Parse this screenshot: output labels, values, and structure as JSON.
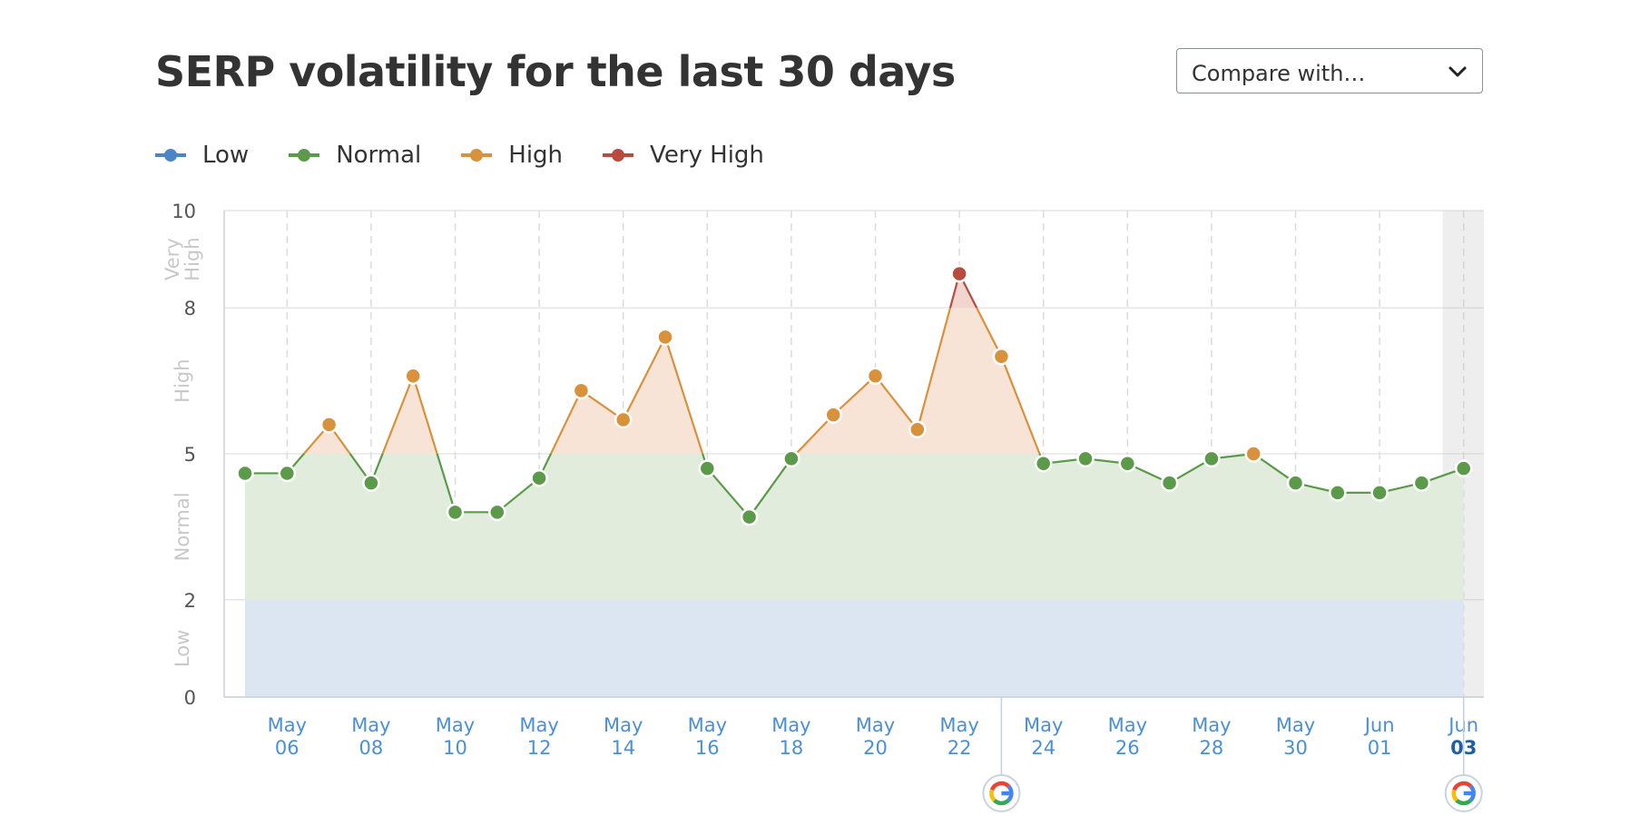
{
  "header": {
    "title": "SERP volatility for the last 30 days",
    "compare_label": "Compare with…",
    "compare_icon": "chevron-down-icon"
  },
  "legend": [
    {
      "label": "Low",
      "color": "#4a86c6"
    },
    {
      "label": "Normal",
      "color": "#5a9a48"
    },
    {
      "label": "High",
      "color": "#d9913b"
    },
    {
      "label": "Very High",
      "color": "#b84a3e"
    }
  ],
  "colors": {
    "low_band": "#dce6f2",
    "normal_band": "#e1ecdc",
    "high_band": "#f7e4d6",
    "very_high_band": "#f1d5cf",
    "axis_labels": "#4a8fd8",
    "grid": "#e6e6e6",
    "band_labels": "#c8c8c8"
  },
  "chart_data": {
    "type": "line",
    "title": "SERP volatility for the last 30 days",
    "ylim": [
      0,
      10
    ],
    "y_ticks": [
      0,
      2,
      5,
      8,
      10
    ],
    "bands": [
      {
        "label": "Low",
        "from": 0,
        "to": 2
      },
      {
        "label": "Normal",
        "from": 2,
        "to": 5
      },
      {
        "label": "High",
        "from": 5,
        "to": 8
      },
      {
        "label": "Very High",
        "from": 8,
        "to": 10
      }
    ],
    "x_tick_labels": [
      {
        "date": "May 06",
        "line1": "May",
        "line2": "06"
      },
      {
        "date": "May 08",
        "line1": "May",
        "line2": "08"
      },
      {
        "date": "May 10",
        "line1": "May",
        "line2": "10"
      },
      {
        "date": "May 12",
        "line1": "May",
        "line2": "12"
      },
      {
        "date": "May 14",
        "line1": "May",
        "line2": "14"
      },
      {
        "date": "May 16",
        "line1": "May",
        "line2": "16"
      },
      {
        "date": "May 18",
        "line1": "May",
        "line2": "18"
      },
      {
        "date": "May 20",
        "line1": "May",
        "line2": "20"
      },
      {
        "date": "May 22",
        "line1": "May",
        "line2": "22"
      },
      {
        "date": "May 24",
        "line1": "May",
        "line2": "24"
      },
      {
        "date": "May 26",
        "line1": "May",
        "line2": "26"
      },
      {
        "date": "May 28",
        "line1": "May",
        "line2": "28"
      },
      {
        "date": "May 30",
        "line1": "May",
        "line2": "30"
      },
      {
        "date": "Jun 01",
        "line1": "Jun",
        "line2": "01"
      },
      {
        "date": "Jun 03",
        "line1": "Jun",
        "line2": "03"
      }
    ],
    "x": [
      "May 05",
      "May 06",
      "May 07",
      "May 08",
      "May 09",
      "May 10",
      "May 11",
      "May 12",
      "May 13",
      "May 14",
      "May 15",
      "May 16",
      "May 17",
      "May 18",
      "May 19",
      "May 20",
      "May 21",
      "May 22",
      "May 23",
      "May 24",
      "May 25",
      "May 26",
      "May 27",
      "May 28",
      "May 29",
      "May 30",
      "May 31",
      "Jun 01",
      "Jun 02",
      "Jun 03"
    ],
    "values": [
      4.6,
      4.6,
      5.6,
      4.4,
      6.6,
      3.8,
      3.8,
      4.5,
      6.3,
      5.7,
      7.4,
      4.7,
      3.7,
      4.9,
      5.8,
      6.6,
      5.5,
      8.7,
      7.0,
      4.8,
      4.9,
      4.8,
      4.4,
      4.9,
      5.0,
      4.4,
      4.2,
      4.2,
      4.4,
      4.7
    ],
    "google_update_dates": [
      "May 23",
      "Jun 03"
    ],
    "highlighted_date": "Jun 03"
  }
}
